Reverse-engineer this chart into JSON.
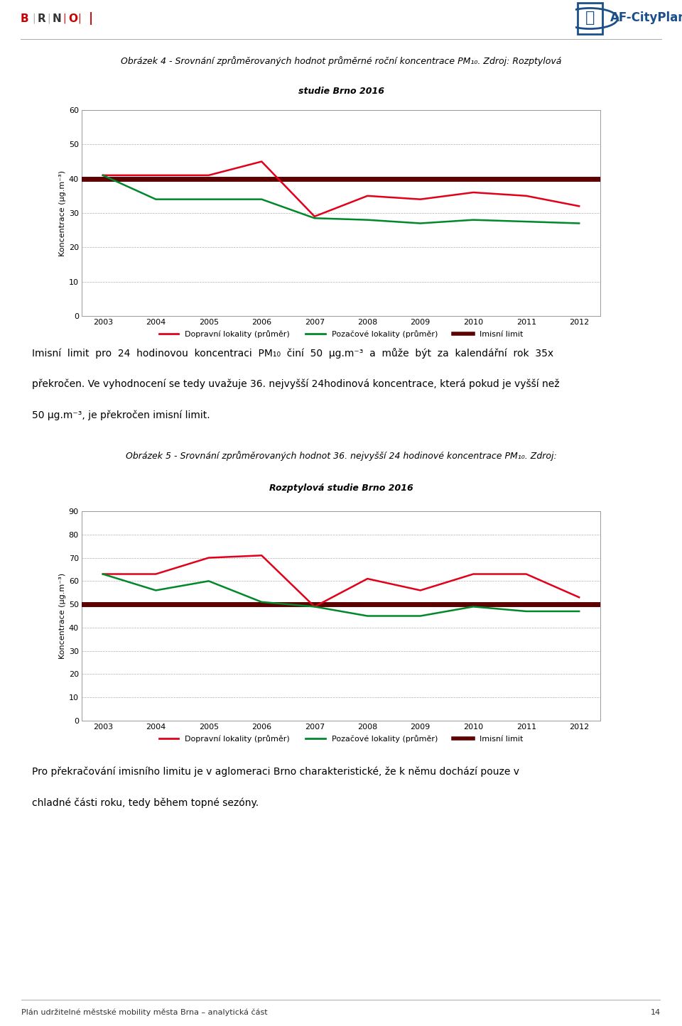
{
  "years": [
    2003,
    2004,
    2005,
    2006,
    2007,
    2008,
    2009,
    2010,
    2011,
    2012
  ],
  "chart1": {
    "dopravni": [
      41.0,
      41.0,
      41.0,
      45.0,
      29.0,
      35.0,
      34.0,
      36.0,
      35.0,
      32.0
    ],
    "pozadove": [
      41.0,
      34.0,
      34.0,
      34.0,
      28.5,
      28.0,
      27.0,
      28.0,
      27.5,
      27.0
    ],
    "imisni_limit": 40,
    "ylim": [
      0,
      60
    ],
    "yticks": [
      0,
      10,
      20,
      30,
      40,
      50,
      60
    ],
    "ylabel": "Koncentrace (µg.m⁻³)"
  },
  "chart2": {
    "dopravni": [
      63.0,
      63.0,
      70.0,
      71.0,
      49.0,
      61.0,
      56.0,
      63.0,
      63.0,
      53.0
    ],
    "pozadove": [
      63.0,
      56.0,
      60.0,
      51.0,
      49.0,
      45.0,
      45.0,
      49.0,
      47.0,
      47.0
    ],
    "imisni_limit": 50,
    "ylim": [
      0,
      90
    ],
    "yticks": [
      0,
      10,
      20,
      30,
      40,
      50,
      60,
      70,
      80,
      90
    ],
    "ylabel": "Koncentrace (µg.m⁻³)"
  },
  "legend_dopravni": "Dopravní lokality (průměr)",
  "legend_pozadove": "Pozačové lokality (průměr)",
  "legend_imisni": "Imisní limit",
  "color_dopravni": "#e2001a",
  "color_pozadove": "#00882b",
  "color_imisni": "#5c0000",
  "footer_text": "Plán udržitelné městské mobility města Brna – analytická část",
  "footer_page": "14",
  "title1_line1": "Obrázek 4 - Srovnání zprůměrovaných hodnot průměrné roční koncentrace PM",
  "title1_line1b": ". Zdroj: Rozptylová",
  "title1_line2": "studie Brno 2016",
  "title2_line1": "Obrázek 5 - Srovnání zprůměrovaných hodnot 36. nejvyšší 24 hodinové koncentrace PM",
  "title2_line1b": ". Zdroj:",
  "title2_line2": "Rozptylová studie Brno 2016",
  "body1_l1": "Imisní limit pro 24 hodinovou koncentraci PM",
  "body1_l1b": " činí 50 μg.m",
  "body1_l1c": " a může být za kalendářní rok 35x",
  "body1_l2": "překročen. Ve vyhodnocení se tedy uvažuje 36. nejvyšší 24hodinová koncentrace, která pokud je vyšší než",
  "body1_l3": "50 μg.m",
  "body1_l3b": ", je překročen imisní limit.",
  "body2_l1": "Pro překračování imisního limitu je v aglomeraci Brno charakteristické, že k němu dochází pouze v",
  "body2_l2": "chladné části roku, tedy během tobné sezóny.",
  "bg_color": "#ffffff"
}
